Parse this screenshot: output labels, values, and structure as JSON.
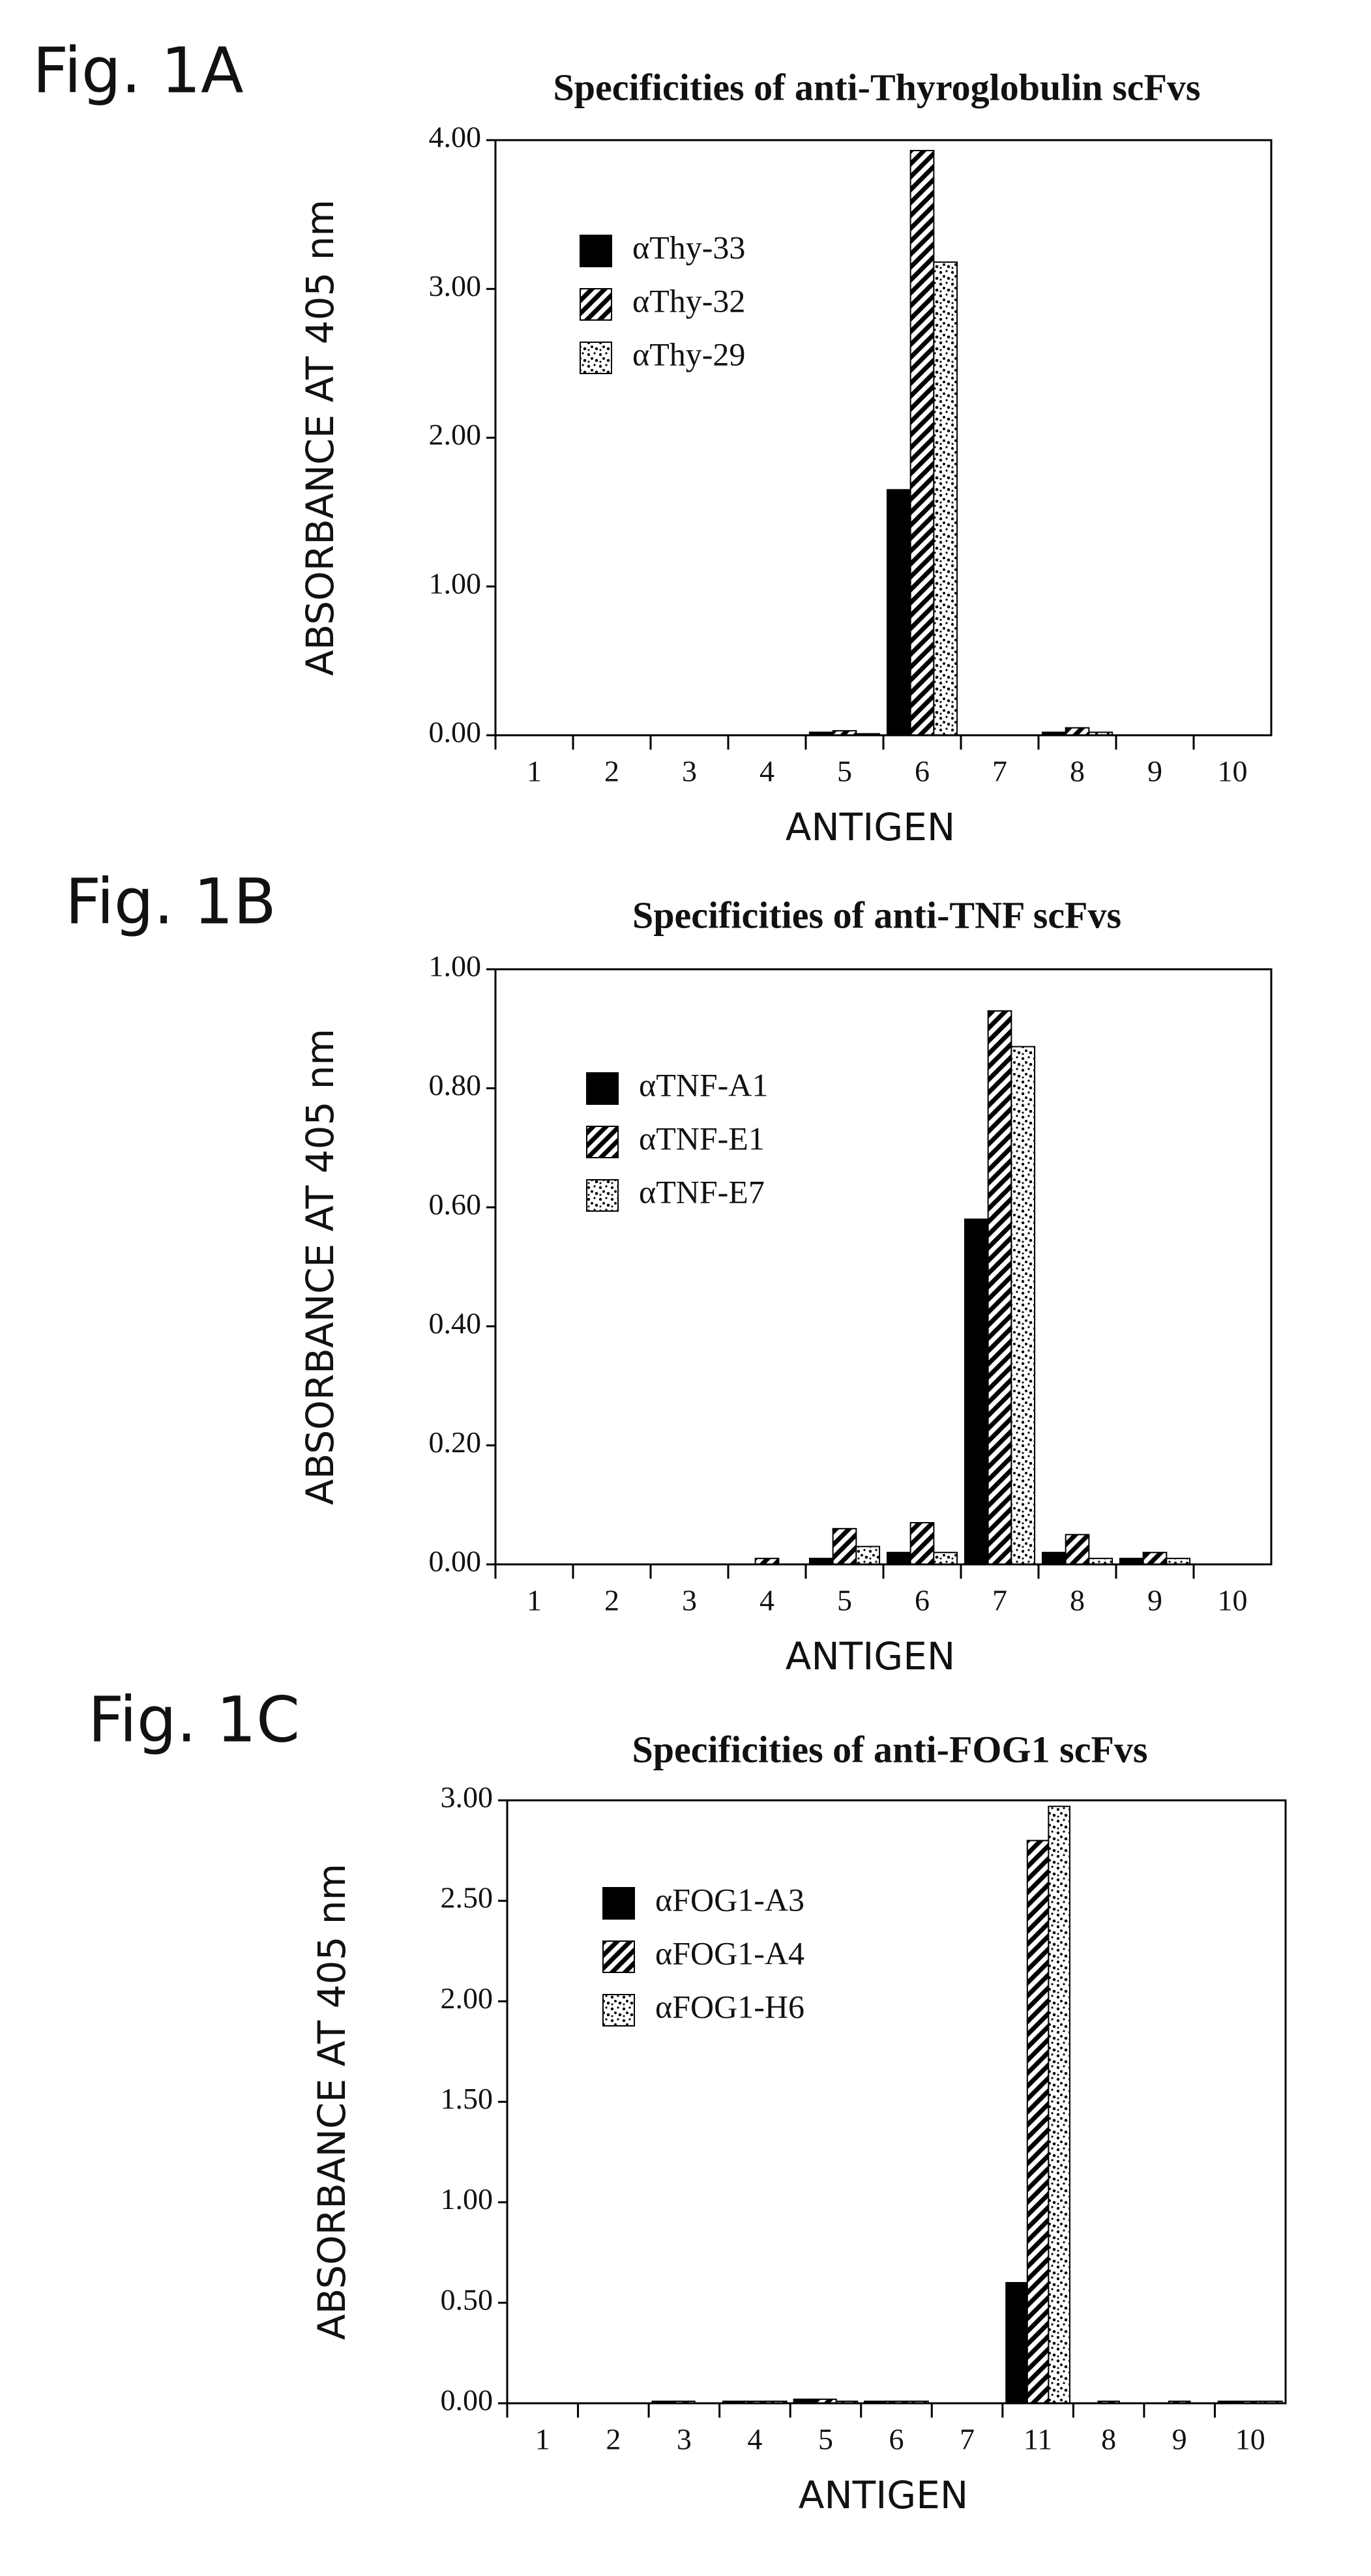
{
  "chart_data": [
    {
      "type": "bar",
      "figure_label": "Fig.  1A",
      "title": "Specificities of anti-Thyroglobulin scFvs",
      "y_label": "ABSORBANCE AT 405 nm",
      "x_label": "ANTIGEN",
      "categories": [
        "1",
        "2",
        "3",
        "4",
        "5",
        "6",
        "7",
        "8",
        "9",
        "10"
      ],
      "series": [
        {
          "name": "αThy-33",
          "color": "#000000",
          "pattern": "solid",
          "values": [
            0,
            0,
            0,
            0,
            0.02,
            1.65,
            0,
            0.02,
            0,
            0
          ]
        },
        {
          "name": "αThy-32",
          "color": "#000000",
          "pattern": "hatch",
          "values": [
            0,
            0,
            0,
            0,
            0.03,
            3.93,
            0,
            0.05,
            0,
            0
          ]
        },
        {
          "name": "αThy-29",
          "color": "#000000",
          "pattern": "stipple",
          "values": [
            0,
            0,
            0,
            0,
            0.01,
            3.18,
            0,
            0.02,
            0,
            0
          ]
        }
      ],
      "ylim": [
        0,
        4
      ],
      "yticks": [
        {
          "value": 0,
          "label": "0.00"
        },
        {
          "value": 1,
          "label": "1.00"
        },
        {
          "value": 2,
          "label": "2.00"
        },
        {
          "value": 3,
          "label": "3.00"
        },
        {
          "value": 4,
          "label": "4.00"
        }
      ]
    },
    {
      "type": "bar",
      "figure_label": "Fig.  1B",
      "title": "Specificities of anti-TNF scFvs",
      "y_label": "ABSORBANCE AT 405 nm",
      "x_label": "ANTIGEN",
      "categories": [
        "1",
        "2",
        "3",
        "4",
        "5",
        "6",
        "7",
        "8",
        "9",
        "10"
      ],
      "series": [
        {
          "name": "αTNF-A1",
          "color": "#000000",
          "pattern": "solid",
          "values": [
            0,
            0,
            0,
            0,
            0.01,
            0.02,
            0.58,
            0.02,
            0.01,
            0
          ]
        },
        {
          "name": "αTNF-E1",
          "color": "#000000",
          "pattern": "hatch",
          "values": [
            0,
            0,
            0,
            0.01,
            0.06,
            0.07,
            0.93,
            0.05,
            0.02,
            0
          ]
        },
        {
          "name": "αTNF-E7",
          "color": "#000000",
          "pattern": "stipple",
          "values": [
            0,
            0,
            0,
            0,
            0.03,
            0.02,
            0.87,
            0.01,
            0.01,
            0
          ]
        }
      ],
      "ylim": [
        0,
        1
      ],
      "yticks": [
        {
          "value": 0,
          "label": "0.00"
        },
        {
          "value": 0.2,
          "label": "0.20"
        },
        {
          "value": 0.4,
          "label": "0.40"
        },
        {
          "value": 0.6,
          "label": "0.60"
        },
        {
          "value": 0.8,
          "label": "0.80"
        },
        {
          "value": 1,
          "label": "1.00"
        }
      ]
    },
    {
      "type": "bar",
      "figure_label": "Fig.  1C",
      "title": "Specificities of anti-FOG1 scFvs",
      "y_label": "ABSORBANCE AT 405 nm",
      "x_label": "ANTIGEN",
      "categories": [
        "1",
        "2",
        "3",
        "4",
        "5",
        "6",
        "7",
        "11",
        "8",
        "9",
        "10"
      ],
      "series": [
        {
          "name": "αFOG1-A3",
          "color": "#000000",
          "pattern": "solid",
          "values": [
            0,
            0,
            0.01,
            0.01,
            0.02,
            0.01,
            0,
            0.6,
            0,
            0,
            0.01
          ]
        },
        {
          "name": "αFOG1-A4",
          "color": "#000000",
          "pattern": "hatch",
          "values": [
            0,
            0,
            0.01,
            0.01,
            0.02,
            0.01,
            0,
            2.8,
            0.01,
            0.01,
            0.01
          ]
        },
        {
          "name": "αFOG1-H6",
          "color": "#000000",
          "pattern": "stipple",
          "values": [
            0,
            0,
            0,
            0.01,
            0.01,
            0.01,
            0,
            2.97,
            0,
            0,
            0.01
          ]
        }
      ],
      "ylim": [
        0,
        3
      ],
      "yticks": [
        {
          "value": 0,
          "label": "0.00"
        },
        {
          "value": 0.5,
          "label": "0.50"
        },
        {
          "value": 1,
          "label": "1.00"
        },
        {
          "value": 1.5,
          "label": "1.50"
        },
        {
          "value": 2,
          "label": "2.00"
        },
        {
          "value": 2.5,
          "label": "2.50"
        },
        {
          "value": 3,
          "label": "3.00"
        }
      ]
    }
  ]
}
